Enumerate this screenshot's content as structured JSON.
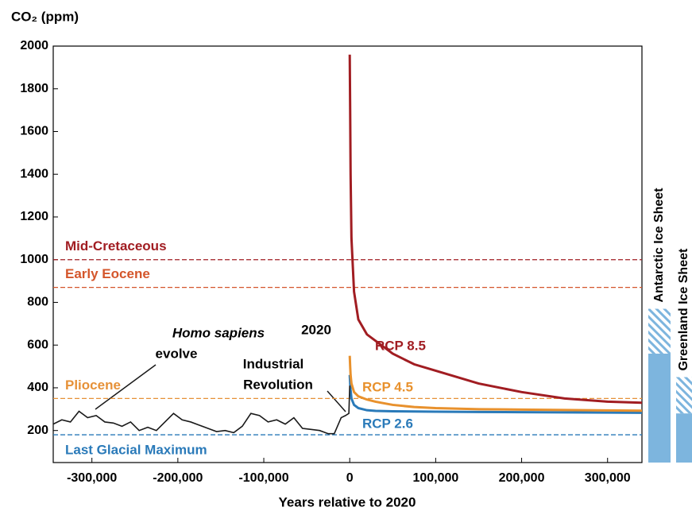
{
  "chart_data": {
    "type": "line",
    "y_label": "CO₂ (ppm)",
    "x_label": "Years relative to 2020",
    "xlim": [
      -345000,
      340000
    ],
    "ylim": [
      50,
      2000
    ],
    "xticks": [
      {
        "value": -300000,
        "label": "-300,000"
      },
      {
        "value": -200000,
        "label": "-200,000"
      },
      {
        "value": -100000,
        "label": "-100,000"
      },
      0,
      {
        "value": 100000,
        "label": "100,000"
      },
      {
        "value": 200000,
        "label": "200,000"
      },
      {
        "value": 300000,
        "label": "300,000"
      }
    ],
    "yticks": [
      200,
      400,
      600,
      800,
      1000,
      1200,
      1400,
      1600,
      1800,
      2000
    ],
    "series": [
      {
        "color": "#1a1a1a",
        "x": [
          -345000,
          -335000,
          -325000,
          -315000,
          -305000,
          -295000,
          -285000,
          -275000,
          -265000,
          -255000,
          -245000,
          -235000,
          -225000,
          -215000,
          -205000,
          -195000,
          -185000,
          -175000,
          -165000,
          -155000,
          -145000,
          -135000,
          -125000,
          -115000,
          -105000,
          -95000,
          -85000,
          -75000,
          -65000,
          -55000,
          -45000,
          -35000,
          -25000,
          -18000,
          -10000,
          -5000,
          -1000,
          0
        ],
        "values": [
          230,
          250,
          240,
          290,
          260,
          270,
          240,
          235,
          220,
          240,
          200,
          215,
          200,
          240,
          280,
          250,
          240,
          225,
          210,
          195,
          200,
          190,
          220,
          280,
          270,
          240,
          250,
          230,
          260,
          210,
          205,
          200,
          185,
          185,
          260,
          270,
          280,
          410
        ]
      },
      {
        "name": "RCP 8.5",
        "color": "#a11d22",
        "x": [
          0,
          500,
          1000,
          2000,
          5000,
          10000,
          20000,
          30000,
          50000,
          75000,
          100000,
          150000,
          200000,
          250000,
          300000,
          340000
        ],
        "values": [
          1960,
          1700,
          1400,
          1100,
          850,
          720,
          650,
          620,
          560,
          510,
          480,
          420,
          380,
          350,
          335,
          330
        ]
      },
      {
        "name": "RCP 4.5",
        "color": "#e8912d",
        "x": [
          0,
          500,
          1000,
          2000,
          5000,
          10000,
          20000,
          30000,
          50000,
          75000,
          100000,
          150000,
          200000,
          250000,
          300000,
          340000
        ],
        "values": [
          550,
          500,
          460,
          420,
          380,
          360,
          345,
          335,
          320,
          310,
          305,
          300,
          298,
          296,
          294,
          293
        ]
      },
      {
        "name": "RCP 2.6",
        "color": "#2a7ab9",
        "x": [
          0,
          500,
          1000,
          2000,
          5000,
          10000,
          20000,
          30000,
          50000,
          75000,
          100000,
          150000,
          200000,
          250000,
          300000,
          340000
        ],
        "values": [
          460,
          420,
          390,
          350,
          320,
          305,
          295,
          292,
          290,
          289,
          288,
          287,
          286,
          285,
          284,
          283
        ]
      }
    ],
    "reference_lines": [
      {
        "name": "Mid-Cretaceous",
        "value": 1000,
        "color": "#a11d22"
      },
      {
        "name": "Early Eocene",
        "value": 870,
        "color": "#d4562b"
      },
      {
        "name": "Pliocene",
        "value": 350,
        "color": "#e69138"
      },
      {
        "name": "Last Glacial Maximum",
        "value": 180,
        "color": "#2a7ab9"
      }
    ],
    "annotations": [
      "Homo sapiens",
      "evolve",
      "2020",
      "Industrial",
      "Revolution"
    ],
    "ice_sheets": [
      {
        "name": "Antarctic Ice Sheet",
        "low": 560,
        "high": 770,
        "color": "#7db5de"
      },
      {
        "name": "Greenland Ice Sheet",
        "low": 280,
        "high": 450,
        "color": "#7db5de"
      }
    ]
  }
}
